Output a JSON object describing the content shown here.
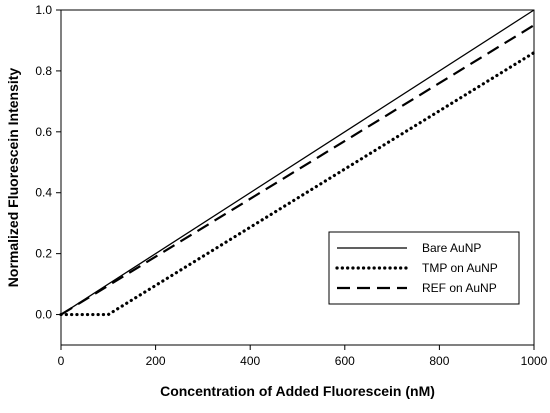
{
  "chart_data": {
    "type": "line",
    "title": "",
    "xlabel": "Concentration of Added Fluorescein (nM)",
    "ylabel": "Normalized Fluorescein Intensity",
    "xlim": [
      0,
      1000
    ],
    "ylim": [
      -0.1,
      1.0
    ],
    "x_ticks": [
      0,
      200,
      400,
      600,
      800,
      1000
    ],
    "y_ticks": [
      0.0,
      0.2,
      0.4,
      0.6,
      0.8,
      1.0
    ],
    "x_tick_labels": [
      "0",
      "200",
      "400",
      "600",
      "800",
      "1000"
    ],
    "y_tick_labels": [
      "0.0",
      "0.2",
      "0.4",
      "0.6",
      "0.8",
      "1.0"
    ],
    "grid": false,
    "legend_position": "bottom-right",
    "series": [
      {
        "name": "Bare AuNP",
        "line_style": "solid",
        "color": "#000000",
        "points": [
          [
            0,
            0.0
          ],
          [
            1000,
            1.0
          ]
        ]
      },
      {
        "name": "TMP on AuNP",
        "line_style": "dotted",
        "color": "#000000",
        "points": [
          [
            0,
            0.0
          ],
          [
            100,
            0.0
          ],
          [
            1000,
            0.86
          ]
        ]
      },
      {
        "name": "REF on AuNP",
        "line_style": "dashed",
        "color": "#000000",
        "points": [
          [
            0,
            0.0
          ],
          [
            1000,
            0.95
          ]
        ]
      }
    ]
  }
}
